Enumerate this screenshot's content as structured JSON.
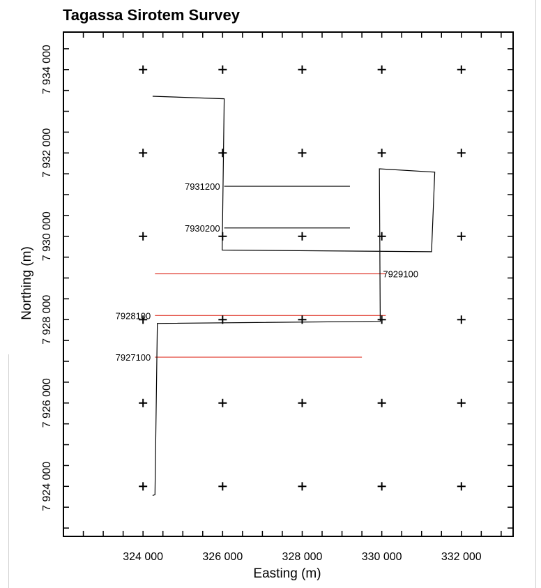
{
  "chart_data": {
    "type": "line",
    "title": "Tagassa Sirotem Survey",
    "xlabel": "Easting (m)",
    "ylabel": "Northing (m)",
    "xlim": [
      322000,
      333300
    ],
    "ylim": [
      7922800,
      7934900
    ],
    "x_ticks": [
      324000,
      326000,
      328000,
      330000,
      332000
    ],
    "x_tick_labels": [
      "324 000",
      "326 000",
      "328 000",
      "330 000",
      "332 000"
    ],
    "y_ticks": [
      7924000,
      7926000,
      7928000,
      7930000,
      7932000,
      7934000
    ],
    "y_tick_labels": [
      "7 924 000",
      "7 926 000",
      "7 928 000",
      "7 930 000",
      "7 932 000",
      "7 934 000"
    ],
    "grid": "crosses at major tick intersections",
    "boundary": {
      "x": [
        324240,
        326040,
        325990,
        331250,
        331330,
        329940,
        329960,
        324360,
        324300,
        324240
      ],
      "y": [
        7933360,
        7933300,
        7929670,
        7929630,
        7931540,
        7931620,
        7927960,
        7927910,
        7923800,
        7923780
      ]
    },
    "survey_lines": [
      {
        "label": "7931200",
        "x": [
          326040,
          329200
        ],
        "y": 7931200,
        "color": "#000000",
        "label_side": "left"
      },
      {
        "label": "7930200",
        "x": [
          326040,
          329200
        ],
        "y": 7930200,
        "color": "#000000",
        "label_side": "left"
      },
      {
        "label": "7929100",
        "x": [
          324300,
          330100
        ],
        "y": 7929100,
        "color": "#e03a2e",
        "label_side": "right"
      },
      {
        "label": "7928100",
        "x": [
          324300,
          330100
        ],
        "y": 7928100,
        "color": "#e03a2e",
        "label_side": "left"
      },
      {
        "label": "7927100",
        "x": [
          324300,
          329500
        ],
        "y": 7927100,
        "color": "#e03a2e",
        "label_side": "left"
      }
    ]
  }
}
